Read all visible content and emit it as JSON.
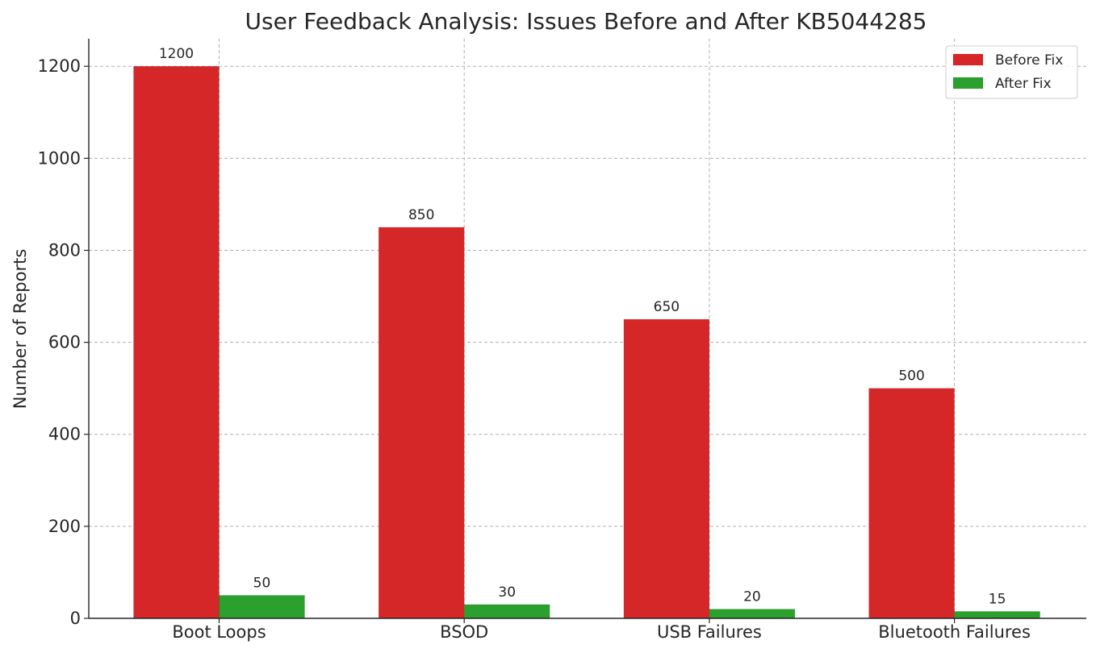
{
  "chart_data": {
    "type": "bar",
    "title": "User Feedback Analysis: Issues Before and After KB5044285",
    "xlabel": "",
    "ylabel": "Number of Reports",
    "categories": [
      "Boot Loops",
      "BSOD",
      "USB Failures",
      "Bluetooth Failures"
    ],
    "series": [
      {
        "name": "Before Fix",
        "values": [
          1200,
          850,
          650,
          500
        ],
        "color": "#d62728"
      },
      {
        "name": "After Fix",
        "values": [
          50,
          30,
          20,
          15
        ],
        "color": "#2ca02c"
      }
    ],
    "ylim": [
      0,
      1260
    ],
    "yticks": [
      0,
      200,
      400,
      600,
      800,
      1000,
      1200
    ],
    "grid": true,
    "legend_position": "top-right",
    "data_labels": true
  }
}
